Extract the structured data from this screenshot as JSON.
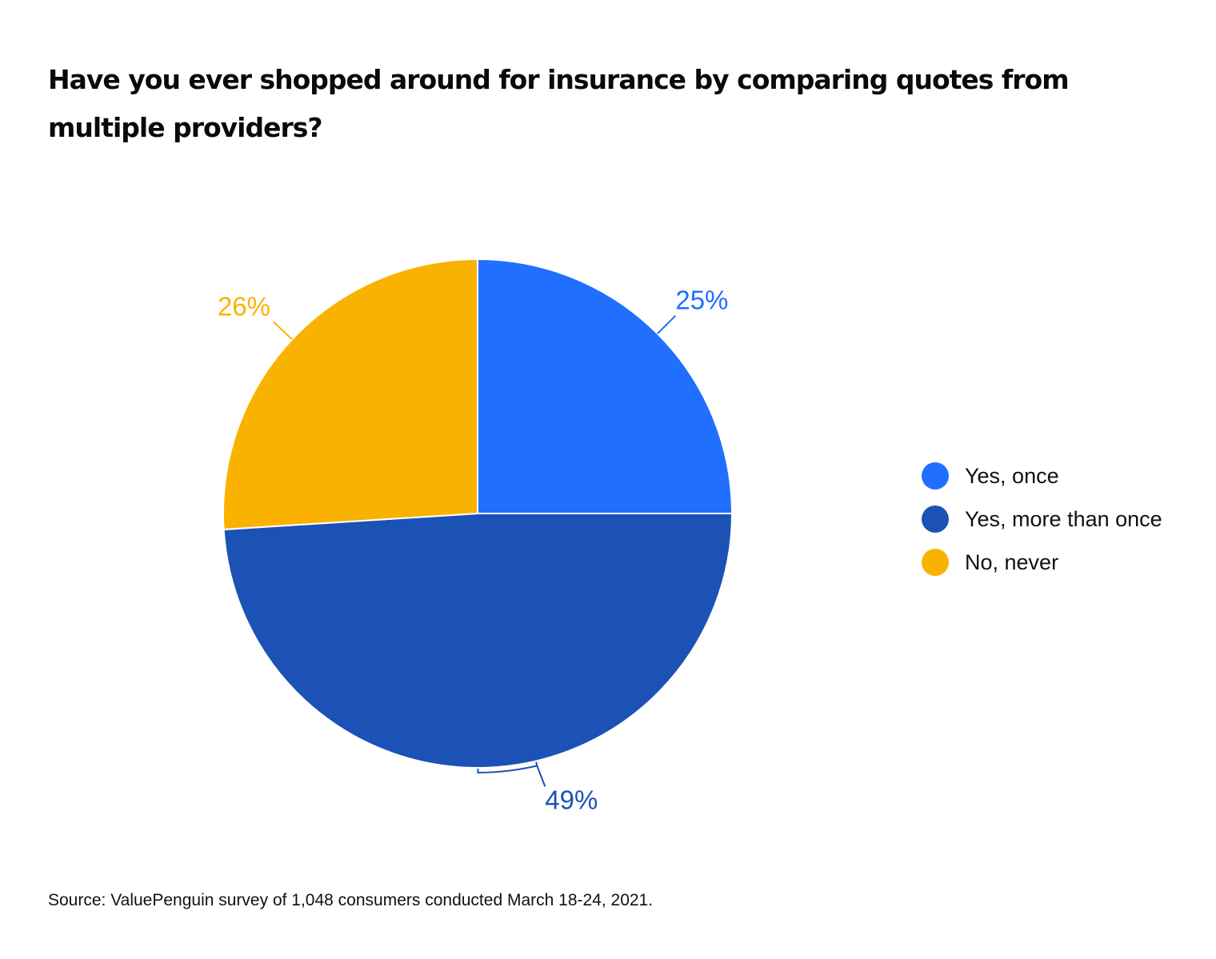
{
  "chart_data": {
    "type": "pie",
    "title": "Have you ever shopped around for insurance by comparing quotes from multiple providers?",
    "slices": [
      {
        "label": "Yes, once",
        "value": 25,
        "value_label": "25%",
        "color": "#216FFF"
      },
      {
        "label": "Yes, more than once",
        "value": 49,
        "value_label": "49%",
        "color": "#1C52B5"
      },
      {
        "label": "No, never",
        "value": 26,
        "value_label": "26%",
        "color": "#F9B200"
      }
    ],
    "start": "top, clockwise",
    "legend": "right",
    "source": "Source: ValuePenguin survey of 1,048 consumers conducted March 18-24, 2021."
  }
}
